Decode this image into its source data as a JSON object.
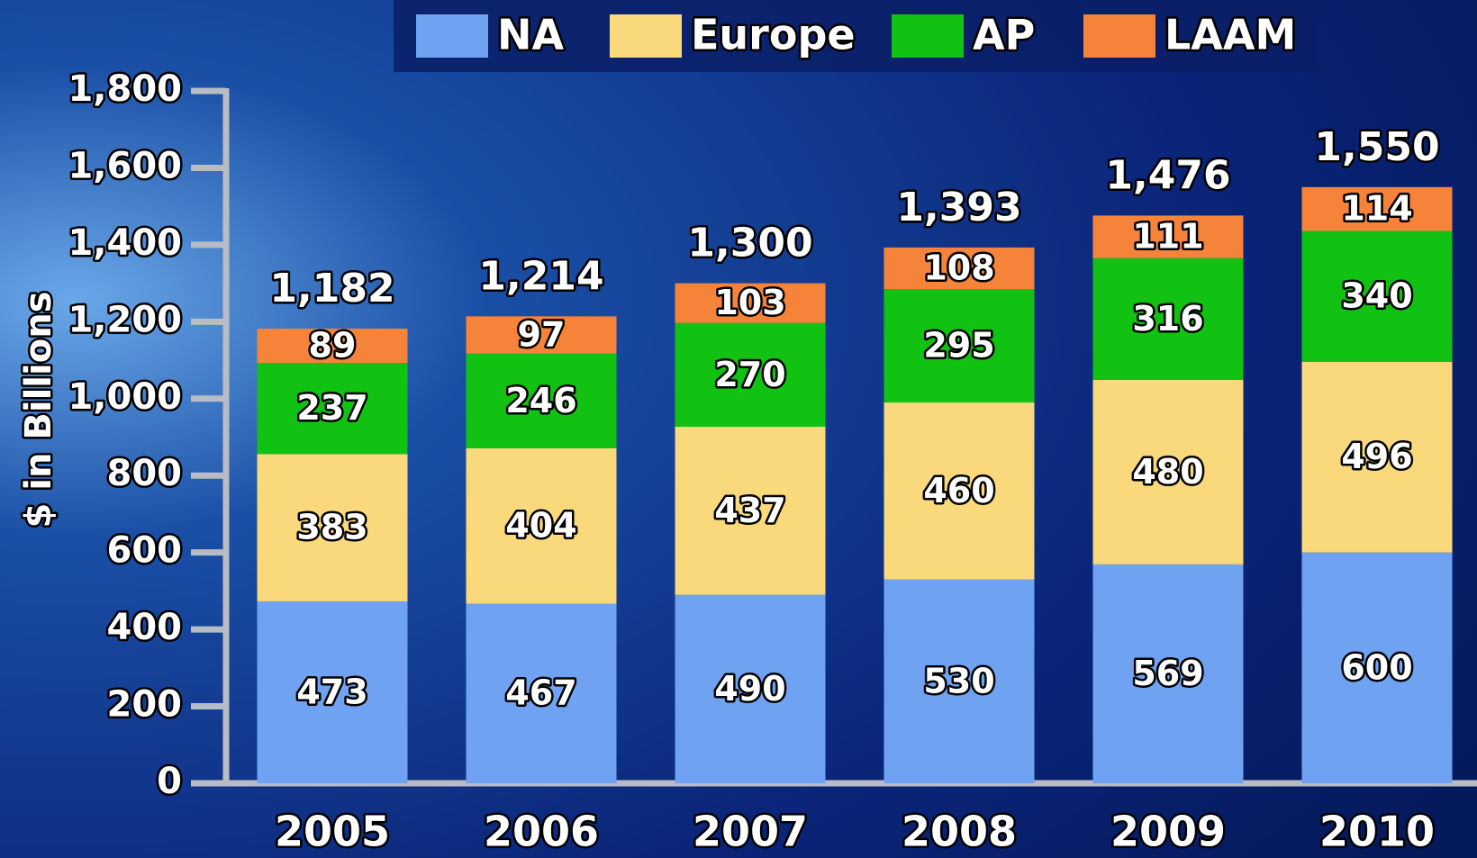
{
  "chart_data": {
    "type": "stacked_bar",
    "ylabel": "$ in Billions",
    "categories": [
      "2005",
      "2006",
      "2007",
      "2008",
      "2009",
      "2010"
    ],
    "series": [
      {
        "name": "NA",
        "color": "#6fa3f2",
        "values": [
          473,
          467,
          490,
          530,
          569,
          600
        ]
      },
      {
        "name": "Europe",
        "color": "#f9d97c",
        "values": [
          383,
          404,
          437,
          460,
          480,
          496
        ]
      },
      {
        "name": "AP",
        "color": "#12c212",
        "values": [
          237,
          246,
          270,
          295,
          316,
          340
        ]
      },
      {
        "name": "LAAM",
        "color": "#f5843a",
        "values": [
          89,
          97,
          103,
          108,
          111,
          114
        ]
      }
    ],
    "totals": {
      "values": [
        1182,
        1214,
        1300,
        1393,
        1476,
        1550
      ],
      "value_labels": [
        "1,182",
        "1,214",
        "1,300",
        "1,393",
        "1,476",
        "1,550"
      ]
    },
    "ylim": [
      0,
      1800
    ],
    "yticks": [
      0,
      200,
      400,
      600,
      800,
      {
        "value": 1000,
        "label": "1,000"
      },
      {
        "value": 1200,
        "label": "1,200"
      },
      {
        "value": 1400,
        "label": "1,400"
      },
      {
        "value": 1600,
        "label": "1,600"
      },
      {
        "value": 1800,
        "label": "1,800"
      }
    ],
    "legend": "top"
  }
}
